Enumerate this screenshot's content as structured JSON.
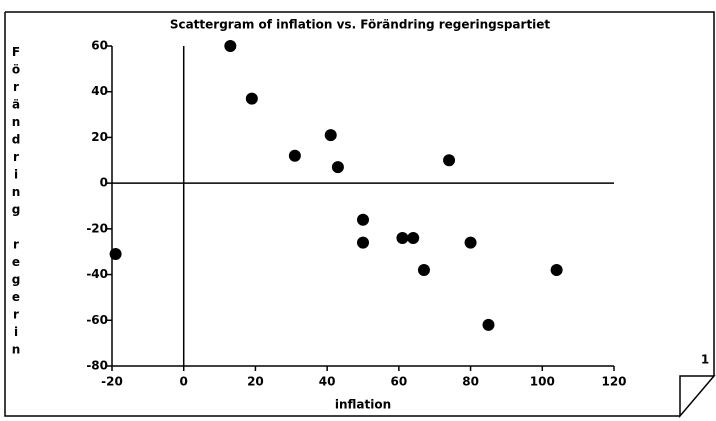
{
  "chart_data": {
    "type": "scatter",
    "title": "Scattergram of inflation vs. Förändring regeringspartiet",
    "x_label": "inflation",
    "y_label": "Förändring regerin",
    "page_marker": "1",
    "color": "#000000",
    "zero_lines": true,
    "x": [
      13,
      19,
      31,
      41,
      43,
      50,
      50,
      61,
      64,
      67,
      74,
      80,
      85,
      104,
      -19
    ],
    "y": [
      60,
      37,
      12,
      21,
      7,
      -16,
      -26,
      -24,
      -24,
      -38,
      10,
      -26,
      -62,
      -38,
      -31
    ],
    "xlim": [
      -20,
      120
    ],
    "xticks": [
      -20,
      0,
      20,
      40,
      60,
      80,
      100,
      120
    ],
    "ylim": [
      -80,
      60
    ],
    "yticks": [
      -80,
      -60,
      -40,
      -20,
      0,
      20,
      40,
      60
    ]
  }
}
